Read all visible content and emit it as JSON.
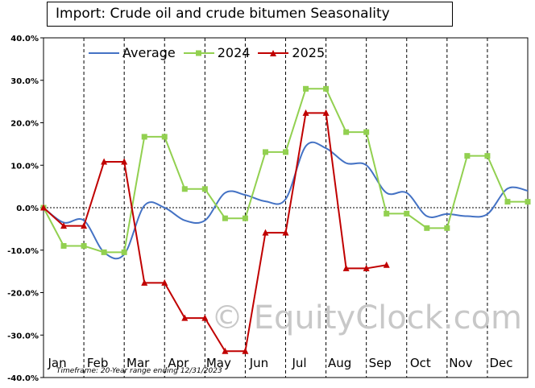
{
  "title": "Import: Crude oil and crude bitumen Seasonality",
  "footnote": "Timeframe: 20-Year range ending 12/31/2023",
  "watermark": "© EquityClock.com",
  "chart_data": {
    "type": "line",
    "title": "Import: Crude oil and crude bitumen Seasonality",
    "ylim": [
      -40,
      40
    ],
    "y_ticks": [
      "40.0%",
      "30.0%",
      "20.0%",
      "10.0%",
      "0.0%",
      "-10.0%",
      "-20.0%",
      "-30.0%",
      "-40.0%"
    ],
    "y_tick_values": [
      40,
      30,
      20,
      10,
      0,
      -10,
      -20,
      -30,
      -40
    ],
    "categories": [
      "Jan",
      "Feb",
      "Mar",
      "Apr",
      "May",
      "Jun",
      "Jul",
      "Aug",
      "Sep",
      "Oct",
      "Nov",
      "Dec"
    ],
    "grid": "vertical dashed lines at month boundaries; horizontal dotted line at 0",
    "legend_position": "top-left",
    "series": [
      {
        "name": "Average",
        "color": "#4472c4",
        "smooth": true,
        "x": [
          0,
          0.5,
          1,
          1.5,
          2,
          2.5,
          3,
          3.5,
          4,
          4.5,
          5,
          5.5,
          6,
          6.5,
          7,
          7.5,
          8,
          8.5,
          9,
          9.5,
          10,
          10.5,
          11,
          11.5,
          12
        ],
        "values": [
          0,
          -3.5,
          -3,
          -10.5,
          -11,
          0.5,
          0,
          -3,
          -3,
          3.5,
          3,
          1.5,
          2,
          14.5,
          14,
          10.5,
          10,
          3.5,
          3.5,
          -2,
          -1.5,
          -2,
          -1.5,
          4.5,
          4
        ]
      },
      {
        "name": "2024",
        "color": "#92d050",
        "marker": "square",
        "x": [
          0,
          0.5,
          1,
          1.5,
          2,
          2.5,
          3,
          3.5,
          4,
          4.5,
          5,
          5.5,
          6,
          6.5,
          7,
          7.5,
          8,
          8.5,
          9,
          9.5,
          10,
          10.5,
          11,
          11.5,
          12
        ],
        "values": [
          0,
          -9,
          -9,
          -10.5,
          -10.5,
          16.7,
          16.7,
          4.4,
          4.4,
          -2.5,
          -2.5,
          13.1,
          13.1,
          28,
          28,
          17.8,
          17.8,
          -1.4,
          -1.4,
          -4.8,
          -4.8,
          12.2,
          12.2,
          1.4,
          1.4
        ]
      },
      {
        "name": "2025",
        "color": "#c00000",
        "marker": "triangle",
        "x": [
          0,
          0.5,
          1,
          1.5,
          2,
          2.5,
          3,
          3.5,
          4,
          4.5,
          5,
          5.5,
          6,
          6.5,
          7,
          7.5,
          8,
          8.5
        ],
        "values": [
          0,
          -4.3,
          -4.3,
          10.8,
          10.8,
          -17.7,
          -17.7,
          -26,
          -26,
          -33.8,
          -33.8,
          -5.9,
          -5.9,
          22.3,
          22.3,
          -14.3,
          -14.3,
          -13.5
        ]
      }
    ]
  }
}
